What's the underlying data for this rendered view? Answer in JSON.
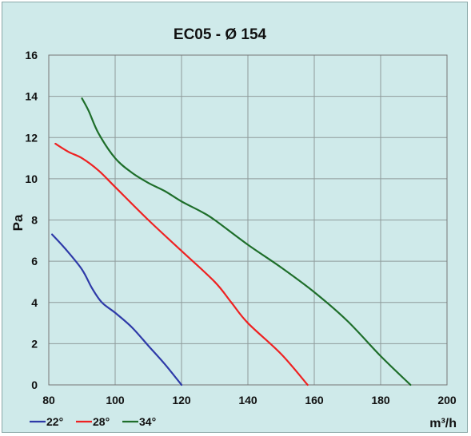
{
  "chart_data": {
    "type": "line",
    "title": "EC05 - Ø 154",
    "xlabel": "m³/h",
    "ylabel": "Pa",
    "xlim": [
      80,
      200
    ],
    "ylim": [
      0,
      16
    ],
    "x_ticks": [
      "80",
      "100",
      "120",
      "140",
      "160",
      "180",
      "200"
    ],
    "y_ticks": [
      "0",
      "2",
      "4",
      "6",
      "8",
      "10",
      "12",
      "14",
      "16"
    ],
    "grid": true,
    "legend_position": "bottom-left",
    "series": [
      {
        "name": "22°",
        "color": "#2e3aa8",
        "points": [
          [
            81,
            7.3
          ],
          [
            85,
            6.6
          ],
          [
            90,
            5.6
          ],
          [
            93,
            4.7
          ],
          [
            96,
            4.0
          ],
          [
            100,
            3.5
          ],
          [
            105,
            2.8
          ],
          [
            110,
            1.9
          ],
          [
            115,
            1.0
          ],
          [
            120,
            0.0
          ]
        ]
      },
      {
        "name": "28°",
        "color": "#ee2222",
        "points": [
          [
            82,
            11.7
          ],
          [
            86,
            11.3
          ],
          [
            90,
            11.0
          ],
          [
            95,
            10.4
          ],
          [
            100,
            9.6
          ],
          [
            110,
            8.0
          ],
          [
            120,
            6.5
          ],
          [
            130,
            5.0
          ],
          [
            135,
            4.0
          ],
          [
            140,
            3.0
          ],
          [
            150,
            1.5
          ],
          [
            158,
            0.0
          ]
        ]
      },
      {
        "name": "34°",
        "color": "#1e6e2a",
        "points": [
          [
            90,
            13.9
          ],
          [
            92,
            13.3
          ],
          [
            95,
            12.2
          ],
          [
            100,
            11.0
          ],
          [
            105,
            10.3
          ],
          [
            110,
            9.8
          ],
          [
            115,
            9.4
          ],
          [
            120,
            8.9
          ],
          [
            126,
            8.4
          ],
          [
            130,
            8.0
          ],
          [
            140,
            6.8
          ],
          [
            150,
            5.7
          ],
          [
            160,
            4.5
          ],
          [
            170,
            3.1
          ],
          [
            180,
            1.4
          ],
          [
            189,
            0.0
          ]
        ]
      }
    ]
  }
}
